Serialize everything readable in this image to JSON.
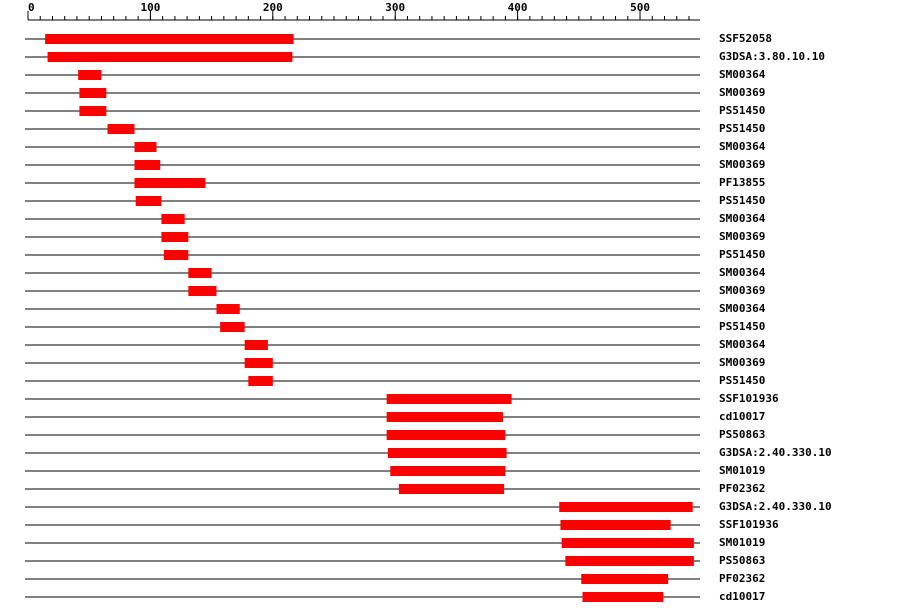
{
  "chart_data": {
    "type": "range-bar",
    "categories": [
      "SSF52058",
      "G3DSA:3.80.10.10",
      "SM00364",
      "SM00369",
      "PS51450",
      "PS51450",
      "SM00364",
      "SM00369",
      "PF13855",
      "PS51450",
      "SM00364",
      "SM00369",
      "PS51450",
      "SM00364",
      "SM00369",
      "SM00364",
      "PS51450",
      "SM00364",
      "SM00369",
      "PS51450",
      "SSF101936",
      "cd10017",
      "PS50863",
      "G3DSA:2.40.330.10",
      "SM01019",
      "PF02362",
      "G3DSA:2.40.330.10",
      "SSF101936",
      "SM01019",
      "PS50863",
      "PF02362",
      "cd10017"
    ],
    "start": [
      14,
      16,
      41,
      42,
      42,
      65,
      87,
      87,
      87,
      88,
      109,
      109,
      111,
      131,
      131,
      154,
      157,
      177,
      177,
      180,
      293,
      293,
      293,
      294,
      296,
      303,
      434,
      435,
      436,
      439,
      452,
      453
    ],
    "end": [
      217,
      216,
      60,
      64,
      64,
      87,
      105,
      108,
      145,
      109,
      128,
      131,
      131,
      150,
      154,
      173,
      177,
      196,
      200,
      200,
      395,
      388,
      390,
      391,
      390,
      389,
      543,
      525,
      544,
      544,
      523,
      519
    ],
    "color": "#ff0000",
    "xlim": [
      0,
      549
    ],
    "xticks": [
      0,
      100,
      200,
      300,
      400,
      500
    ],
    "xminor_step": 10
  }
}
